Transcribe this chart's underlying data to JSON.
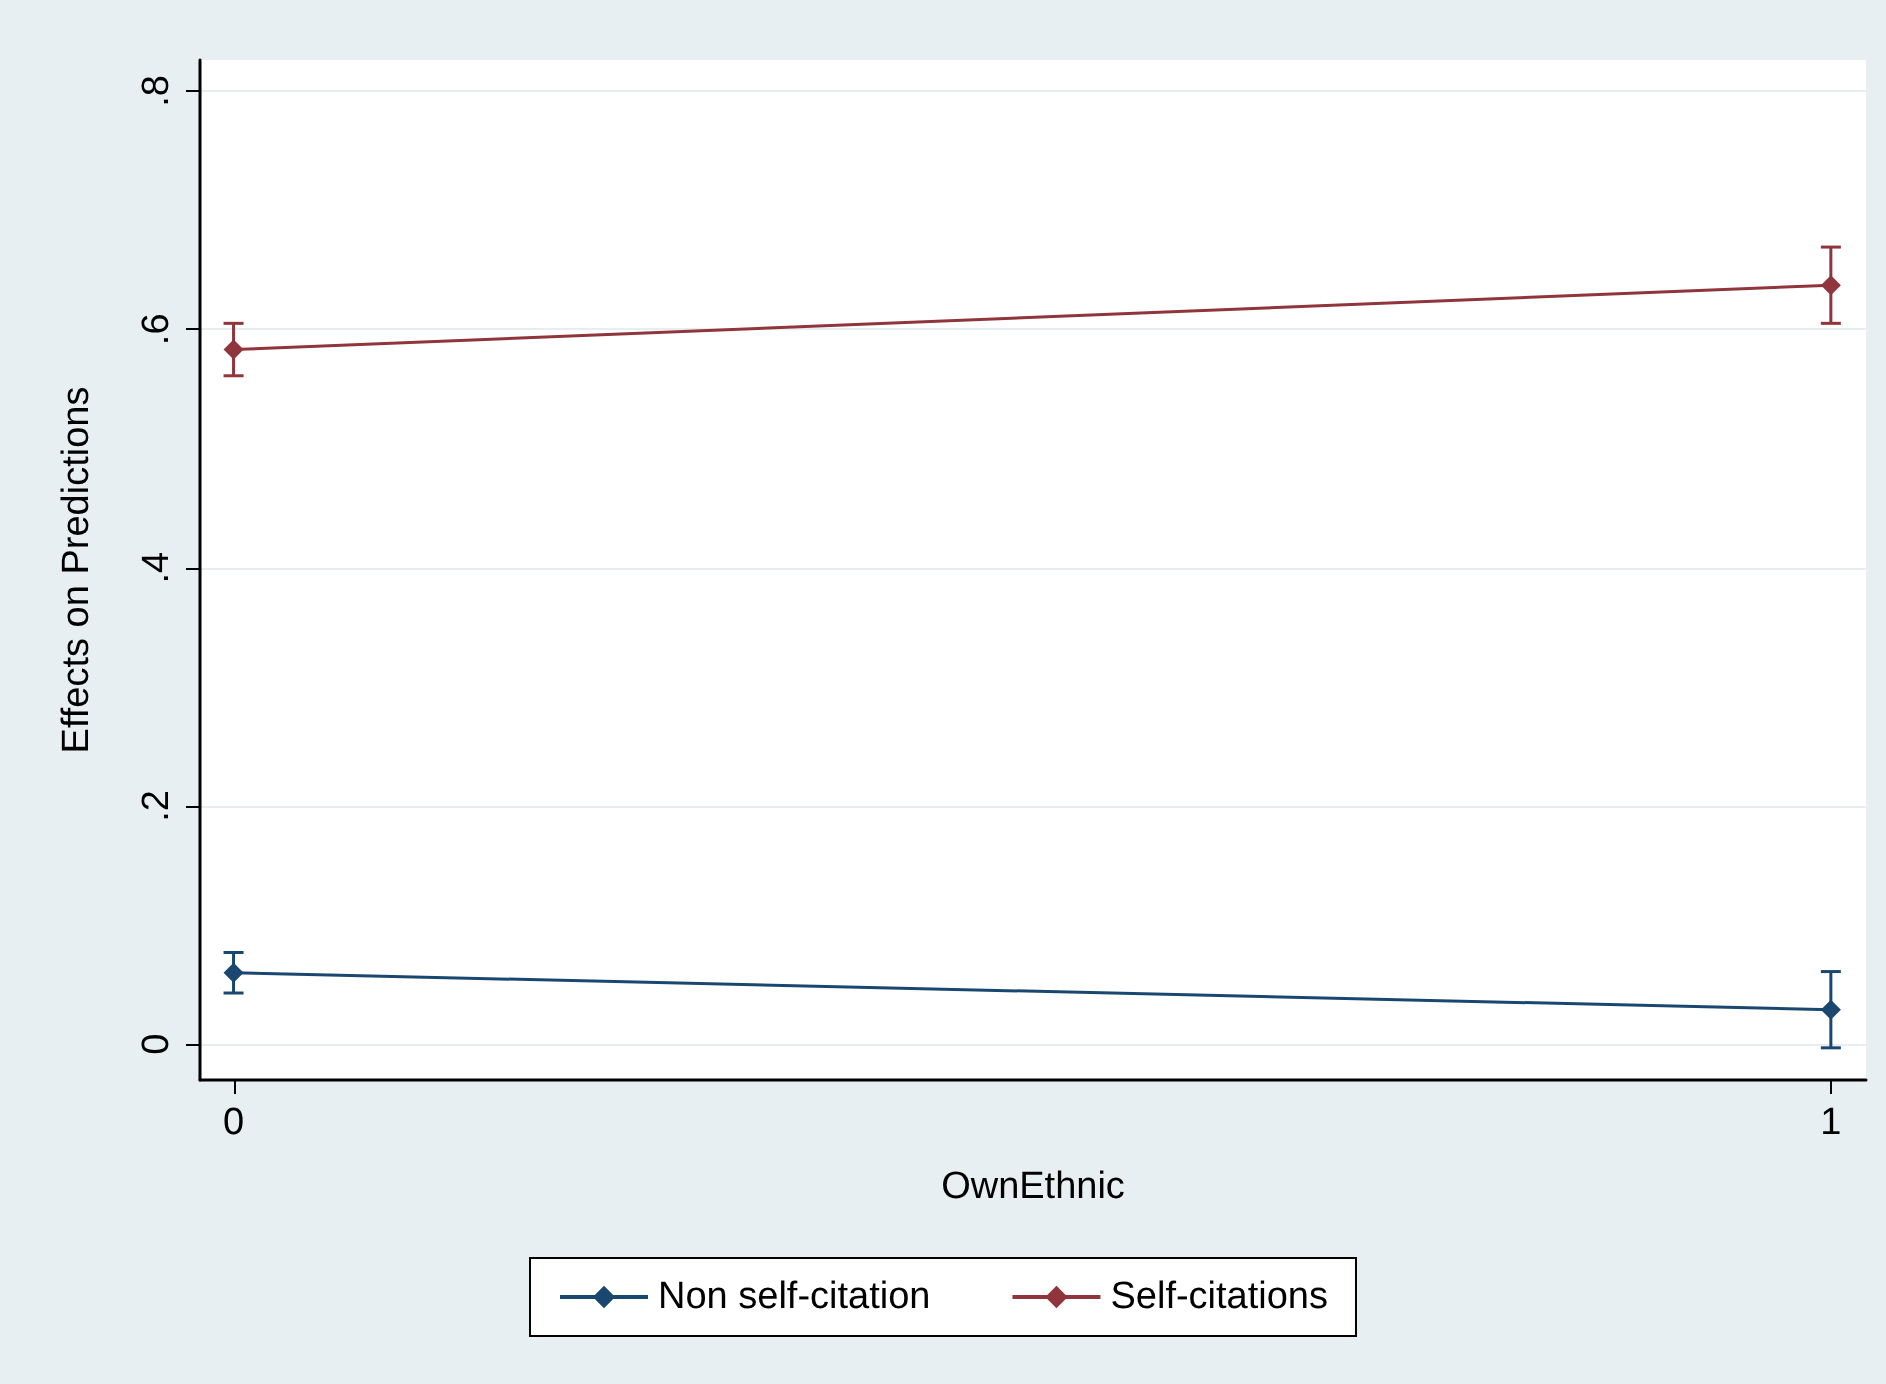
{
  "chart_data": {
    "type": "line",
    "xlabel": "OwnEthnic",
    "ylabel": "Effects on Predictions",
    "x": [
      0,
      1
    ],
    "series": [
      {
        "name": "Non self-citation",
        "color": "#1a476f",
        "values": [
          0.06,
          0.029
        ],
        "errors": [
          0.017,
          0.032
        ]
      },
      {
        "name": "Self-citations",
        "color": "#90353b",
        "values": [
          0.583,
          0.637
        ],
        "errors": [
          0.022,
          0.032
        ]
      }
    ],
    "xlim": [
      -0.021,
      1.022
    ],
    "xticks": [
      0,
      1
    ],
    "ylim": [
      -0.03,
      0.826
    ],
    "yticks": [
      {
        "value": 0,
        "label": "0"
      },
      {
        "value": 0.2,
        "label": ".2"
      },
      {
        "value": 0.4,
        "label": ".4"
      },
      {
        "value": 0.6,
        "label": ".6"
      },
      {
        "value": 0.8,
        "label": ".8"
      }
    ],
    "grid": "y",
    "legend": "bottom",
    "marker": "diamond",
    "line_style": "solid"
  }
}
